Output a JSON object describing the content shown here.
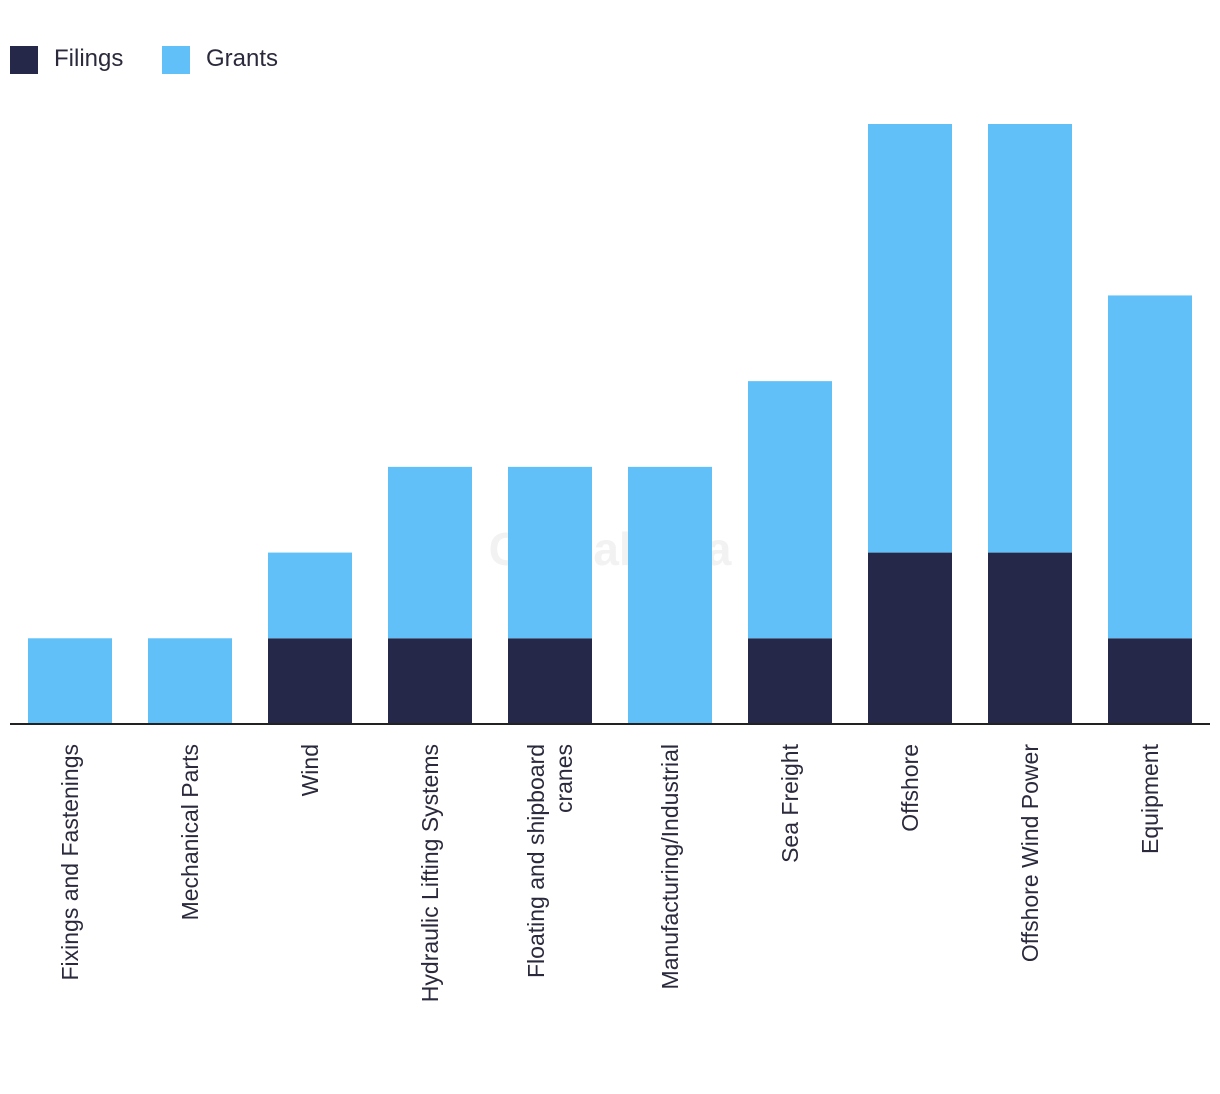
{
  "chart_data": {
    "type": "bar",
    "stacked": true,
    "title": "",
    "xlabel": "",
    "ylabel": "",
    "ylim": [
      0,
      7
    ],
    "grid": false,
    "legend_position": "top-left",
    "categories": [
      "Fixings and Fastenings",
      "Mechanical Parts",
      "Wind",
      "Hydraulic Lifting Systems",
      "Floating and shipboard cranes",
      "Manufacturing/Industrial",
      "Sea Freight",
      "Offshore",
      "Offshore Wind Power",
      "Equipment"
    ],
    "series": [
      {
        "name": "Filings",
        "color": "#26284a",
        "values": [
          0,
          0,
          1,
          1,
          1,
          0,
          1,
          2,
          2,
          1
        ]
      },
      {
        "name": "Grants",
        "color": "#62c0f8",
        "values": [
          1,
          1,
          1,
          2,
          2,
          3,
          3,
          5,
          5,
          4
        ]
      }
    ]
  },
  "watermark": "GlobalData"
}
